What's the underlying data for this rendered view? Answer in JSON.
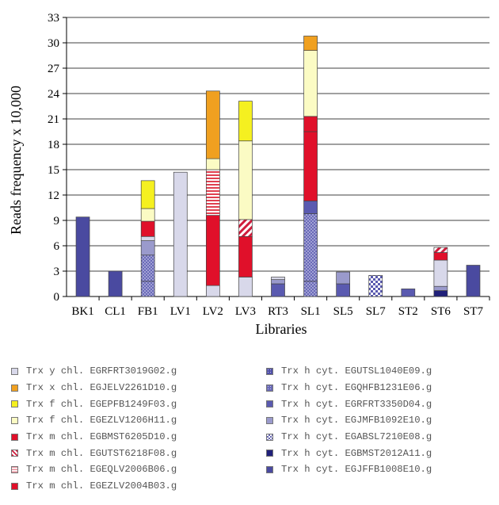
{
  "chart_data": {
    "type": "bar",
    "stacked": true,
    "xlabel": "Libraries",
    "ylabel": "Reads frequency x 10,000",
    "ylim": [
      0,
      33
    ],
    "yticks": [
      0,
      3,
      6,
      9,
      12,
      15,
      18,
      21,
      24,
      27,
      30,
      33
    ],
    "categories": [
      "BK1",
      "CL1",
      "FB1",
      "LV1",
      "LV2",
      "LV3",
      "RT3",
      "SL1",
      "SL5",
      "SL7",
      "ST2",
      "ST6",
      "ST7"
    ],
    "series": [
      {
        "name": "Trx h cyt. EGJFFB1008E10.g",
        "color": "#4a4aa0",
        "pattern": "solid",
        "values": [
          9.4,
          3.0,
          0,
          0,
          0,
          0,
          0,
          0,
          0,
          0,
          0,
          0,
          3.7
        ]
      },
      {
        "name": "Trx h cyt. EGBMST2012A11.g",
        "color": "#20207a",
        "pattern": "solid",
        "values": [
          0,
          0,
          0,
          0,
          0,
          0,
          0,
          0,
          0,
          0,
          0,
          0.7,
          0
        ]
      },
      {
        "name": "Trx h cyt. EGUTSL1040E09.g",
        "color": "#5050a8",
        "pattern": "dots",
        "values": [
          0,
          0,
          1.8,
          0,
          0,
          0,
          0,
          1.8,
          0,
          0,
          0,
          0,
          0
        ]
      },
      {
        "name": "Trx h cyt. EGQHFB1231E06.g",
        "color": "#6a6ab8",
        "pattern": "dots",
        "values": [
          0,
          0,
          3.1,
          0,
          0,
          0,
          0,
          8.0,
          0,
          0,
          0,
          0,
          0
        ]
      },
      {
        "name": "Trx h cyt. EGRFRT3350D04.g",
        "color": "#5a5ab0",
        "pattern": "solid",
        "values": [
          0,
          0,
          0,
          0,
          0,
          0,
          1.5,
          1.5,
          1.5,
          0,
          0.9,
          0,
          0
        ]
      },
      {
        "name": "Trx h cyt. EGJMFB1092E10.g",
        "color": "#9a9acc",
        "pattern": "solid",
        "values": [
          0,
          0,
          1.7,
          0,
          0,
          0,
          0.5,
          0,
          1.4,
          0,
          0,
          0.5,
          0
        ]
      },
      {
        "name": "Trx h cyt. EGABSL7210E08.g",
        "color": "#6868b4",
        "pattern": "check",
        "values": [
          0,
          0,
          0,
          0,
          0,
          0,
          0,
          0,
          0,
          2.5,
          0,
          0,
          0
        ]
      },
      {
        "name": "Trx y chl. EGRFRT3019G02.g",
        "color": "#d8d8ea",
        "pattern": "solid",
        "values": [
          0,
          0,
          0.5,
          14.7,
          1.3,
          2.3,
          0.3,
          0,
          0,
          0,
          0,
          3.1,
          0
        ]
      },
      {
        "name": "Trx m chl. EGBMST6205D10.g",
        "color": "#e0102a",
        "pattern": "solid",
        "values": [
          0,
          0,
          1.8,
          0,
          8.3,
          4.8,
          0,
          8.2,
          0,
          0,
          0,
          0.9,
          0
        ]
      },
      {
        "name": "Trx m chl. EGUTST6218F08.g",
        "color": "#d01c3c",
        "pattern": "diag",
        "values": [
          0,
          0,
          0,
          0,
          0,
          2.0,
          0,
          0,
          0,
          0,
          0,
          0.6,
          0
        ]
      },
      {
        "name": "Trx m chl. EGEQLV2006B06.g",
        "color": "#e8909c",
        "pattern": "hlines",
        "values": [
          0,
          0,
          0,
          0,
          5.4,
          0,
          0,
          0,
          0,
          0,
          0,
          0,
          0
        ]
      },
      {
        "name": "Trx m chl. EGEZLV2004B03.g",
        "color": "#e0102a",
        "pattern": "solid",
        "values": [
          0,
          0,
          0,
          0,
          0,
          0,
          0,
          1.8,
          0,
          0,
          0,
          0,
          0
        ]
      },
      {
        "name": "Trx f chl. EGEZLV1206H11.g",
        "color": "#fbfbc4",
        "pattern": "solid",
        "values": [
          0,
          0,
          1.5,
          0,
          1.3,
          9.3,
          0,
          7.8,
          0,
          0,
          0,
          0,
          0
        ]
      },
      {
        "name": "Trx f chl. EGEPFB1249F03.g",
        "color": "#f5f020",
        "pattern": "solid",
        "values": [
          0,
          0,
          3.3,
          0,
          0,
          4.7,
          0,
          0,
          0,
          0,
          0,
          0,
          0
        ]
      },
      {
        "name": "Trx x chl. EGJELV2261D10.g",
        "color": "#f0a020",
        "pattern": "solid",
        "values": [
          0,
          0,
          0,
          0,
          8.0,
          0,
          0,
          1.7,
          0,
          0,
          0,
          0,
          0
        ]
      }
    ],
    "legend": {
      "placement": "bottom",
      "left_column": [
        {
          "label": "Trx y chl. EGRFRT3019G02.g",
          "color": "#d8d8ea",
          "pattern": "solid"
        },
        {
          "label": "Trx x chl. EGJELV2261D10.g",
          "color": "#f0a020",
          "pattern": "solid"
        },
        {
          "label": "Trx f chl. EGEPFB1249F03.g",
          "color": "#f5f020",
          "pattern": "solid"
        },
        {
          "label": "Trx f chl. EGEZLV1206H11.g",
          "color": "#fbfbc4",
          "pattern": "solid"
        },
        {
          "label": "Trx m chl. EGBMST6205D10.g",
          "color": "#e0102a",
          "pattern": "solid"
        },
        {
          "label": "Trx m chl. EGUTST6218F08.g",
          "color": "#d01c3c",
          "pattern": "diag"
        },
        {
          "label": "Trx m chl. EGEQLV2006B06.g",
          "color": "#e8909c",
          "pattern": "hlines"
        },
        {
          "label": "Trx m chl. EGEZLV2004B03.g",
          "color": "#e0102a",
          "pattern": "solid"
        }
      ],
      "right_column": [
        {
          "label": "Trx h cyt. EGUTSL1040E09.g",
          "color": "#5050a8",
          "pattern": "dots"
        },
        {
          "label": "Trx h cyt. EGQHFB1231E06.g",
          "color": "#6a6ab8",
          "pattern": "dots"
        },
        {
          "label": "Trx h cyt. EGRFRT3350D04.g",
          "color": "#5a5ab0",
          "pattern": "solid"
        },
        {
          "label": "Trx h cyt. EGJMFB1092E10.g",
          "color": "#9a9acc",
          "pattern": "solid"
        },
        {
          "label": "Trx h cyt. EGABSL7210E08.g",
          "color": "#6868b4",
          "pattern": "check"
        },
        {
          "label": "Trx h cyt. EGBMST2012A11.g",
          "color": "#20207a",
          "pattern": "solid"
        },
        {
          "label": "Trx h cyt. EGJFFB1008E10.g",
          "color": "#4a4aa0",
          "pattern": "solid"
        }
      ]
    }
  }
}
